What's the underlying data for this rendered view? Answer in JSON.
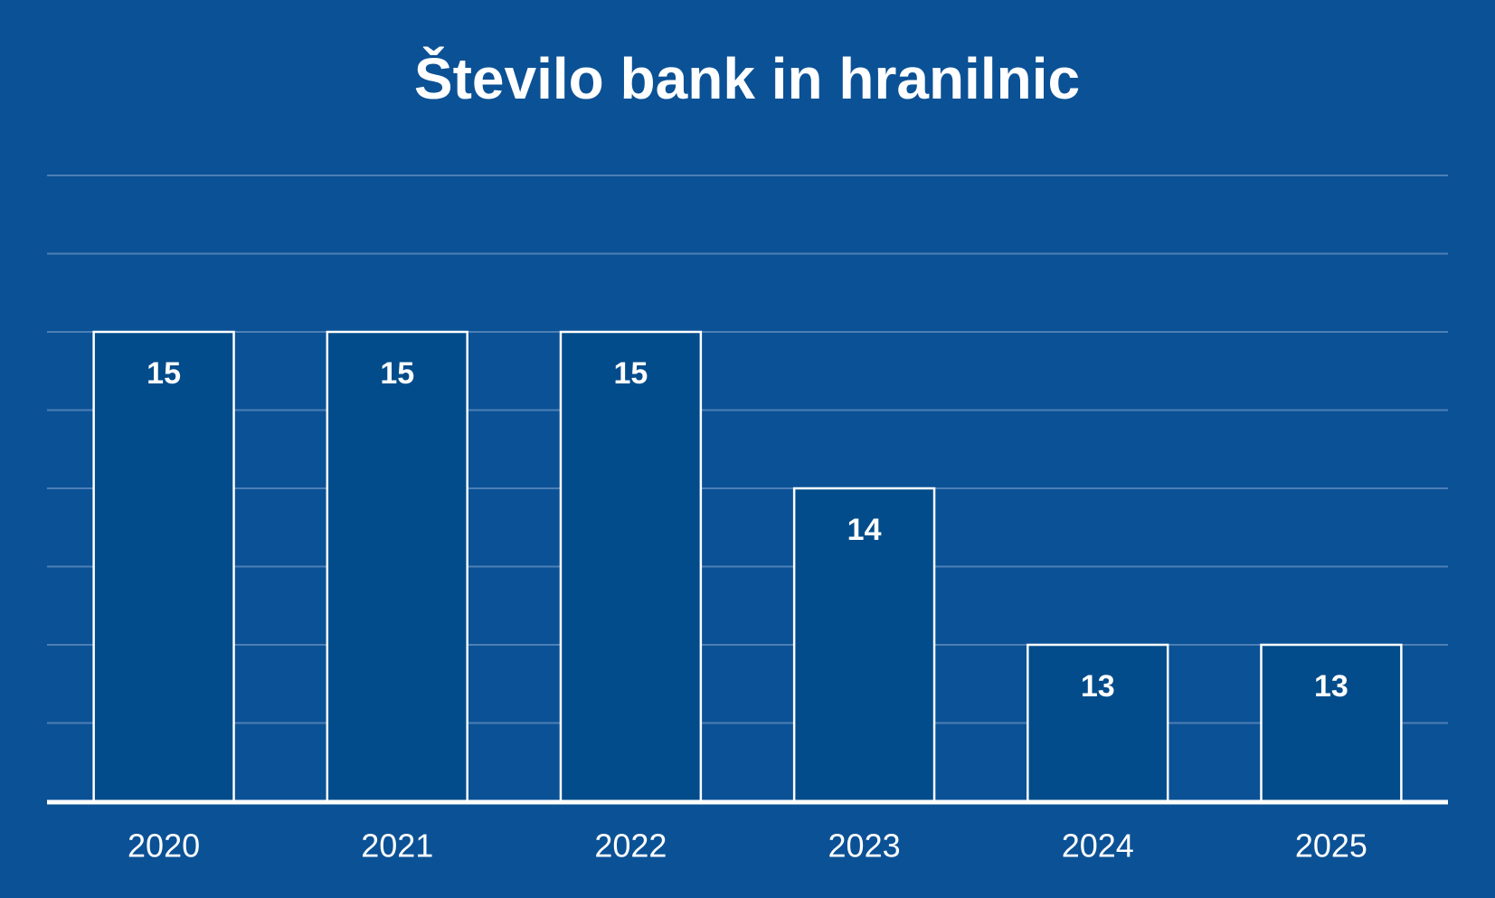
{
  "chart_data": {
    "type": "bar",
    "title": "Število bank in hranilnic",
    "categories": [
      "2020",
      "2021",
      "2022",
      "2023",
      "2024",
      "2025"
    ],
    "values": [
      15,
      15,
      15,
      14,
      13,
      13
    ],
    "color": "#024c8b",
    "ylim": [
      12,
      16
    ],
    "yticks": [
      12.5,
      13,
      13.5,
      14,
      14.5,
      15,
      15.5,
      16
    ],
    "grid": true
  }
}
